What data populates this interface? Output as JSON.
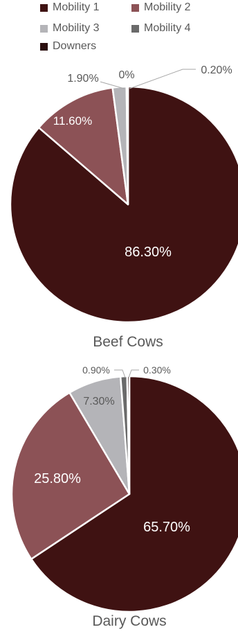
{
  "legend": [
    {
      "name": "Mobility 1",
      "color": "#3f1212"
    },
    {
      "name": "Mobility 2",
      "color": "#8c5256"
    },
    {
      "name": "Mobility 3",
      "color": "#b4b4b8"
    },
    {
      "name": "Mobility 4",
      "color": "#6a6a6a"
    },
    {
      "name": "Downers",
      "color": "#2a0e0e"
    }
  ],
  "chart_data": [
    {
      "type": "pie",
      "title": "Beef Cows",
      "categories": [
        "Mobility 1",
        "Mobility 2",
        "Mobility 3",
        "Mobility 4",
        "Downers"
      ],
      "values": [
        86.3,
        11.6,
        1.9,
        0,
        0.2
      ],
      "labels": [
        "86.30%",
        "11.60%",
        "1.90%",
        "0%",
        "0.20%"
      ]
    },
    {
      "type": "pie",
      "title": "Dairy Cows",
      "categories": [
        "Mobility 1",
        "Mobility 2",
        "Mobility 3",
        "Mobility 4",
        "Downers"
      ],
      "values": [
        65.7,
        25.8,
        7.3,
        0.9,
        0.3
      ],
      "labels": [
        "65.70%",
        "25.80%",
        "7.30%",
        "0.90%",
        "0.30%"
      ]
    }
  ]
}
